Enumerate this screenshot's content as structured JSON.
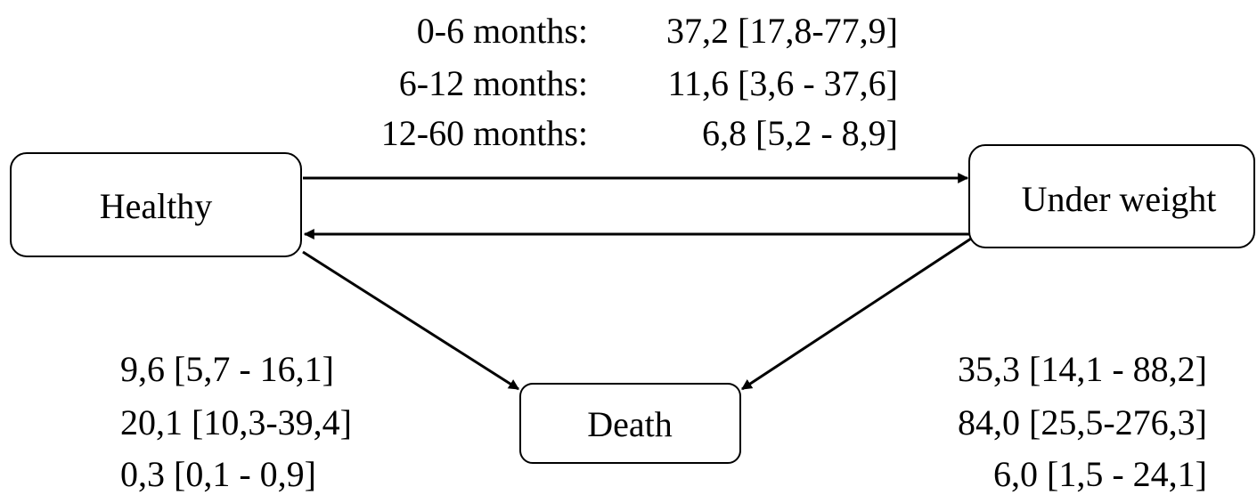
{
  "nodes": [
    {
      "label": "Healthy"
    },
    {
      "label": "Under weight"
    },
    {
      "label": "Death"
    }
  ],
  "transitions": {
    "healthy_to_underweight": [
      {
        "period": "0-6 months:",
        "value": "37,2 [17,8-77,9]"
      },
      {
        "period": "6-12 months:",
        "value": "11,6 [3,6 - 37,6]"
      },
      {
        "period": "12-60 months:",
        "value": "6,8 [5,2 - 8,9]"
      }
    ],
    "healthy_to_death": [
      "9,6 [5,7 - 16,1]",
      "20,1 [10,3-39,4]",
      "0,3 [0,1 - 0,9]"
    ],
    "underweight_to_death": [
      "35,3 [14,1 - 88,2]",
      "84,0 [25,5-276,3]",
      "6,0 [1,5 - 24,1]"
    ]
  }
}
